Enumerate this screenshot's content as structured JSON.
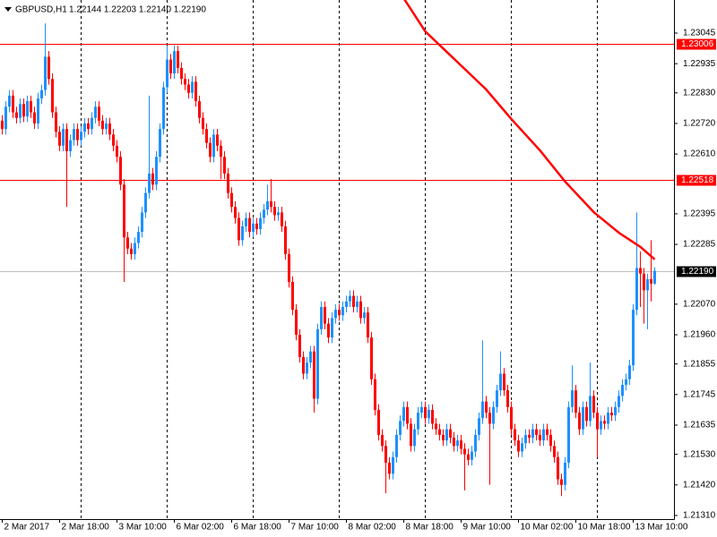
{
  "chart_data": {
    "type": "candlestick",
    "title": "GBPUSD,H1",
    "ohlc_label": "1.22144 1.22203 1.22140 1.22190",
    "categories": [
      "2 Mar 2017",
      null,
      null,
      null,
      null,
      null,
      null,
      null,
      null,
      null,
      null,
      null,
      null,
      null,
      null,
      null,
      "2 Mar 18:00",
      null,
      null,
      null,
      null,
      null,
      null,
      null,
      null,
      null,
      null,
      null,
      null,
      null,
      null,
      null,
      "3 Mar 10:00",
      null,
      null,
      null,
      null,
      null,
      null,
      null,
      null,
      null,
      null,
      null,
      null,
      null,
      null,
      null,
      "6 Mar 02:00",
      null,
      null,
      null,
      null,
      null,
      null,
      null,
      null,
      null,
      null,
      null,
      null,
      null,
      null,
      null,
      "6 Mar 18:00",
      null,
      null,
      null,
      null,
      null,
      null,
      null,
      null,
      null,
      null,
      null,
      null,
      null,
      null,
      null,
      "7 Mar 10:00",
      null,
      null,
      null,
      null,
      null,
      null,
      null,
      null,
      null,
      null,
      null,
      null,
      null,
      null,
      null,
      "8 Mar 02:00",
      null,
      null,
      null,
      null,
      null,
      null,
      null,
      null,
      null,
      null,
      null,
      null,
      null,
      null,
      null,
      "8 Mar 18:00",
      null,
      null,
      null,
      null,
      null,
      null,
      null,
      null,
      null,
      null,
      null,
      null,
      null,
      null,
      null,
      "9 Mar 10:00",
      null,
      null,
      null,
      null,
      null,
      null,
      null,
      null,
      null,
      null,
      null,
      null,
      null,
      null,
      null,
      "10 Mar 02:00",
      null,
      null,
      null,
      null,
      null,
      null,
      null,
      null,
      null,
      null,
      null,
      null,
      null,
      null,
      null,
      "10 Mar 18:00",
      null,
      null,
      null,
      null,
      null,
      null,
      null,
      null,
      null,
      null,
      null,
      null,
      null,
      null,
      null,
      "13 Mar 10:00",
      null,
      null,
      null,
      null,
      null,
      null
    ],
    "open": [
      1.2273,
      1.227,
      1.2278,
      1.2282,
      1.2276,
      1.2274,
      1.2279,
      1.22745,
      1.228,
      1.2276,
      1.2272,
      1.2281,
      1.2284,
      1.2296,
      1.2288,
      1.2276,
      1.2269,
      1.2264,
      1.227,
      1.2262,
      1.2266,
      1.227,
      1.2266,
      1.2269,
      1.2272,
      1.227,
      1.2274,
      1.2278,
      1.2273,
      1.227,
      1.2272,
      1.2268,
      1.2264,
      1.226,
      1.225,
      1.2231,
      1.2227,
      1.2225,
      1.2229,
      1.2233,
      1.224,
      1.2247,
      1.2254,
      1.225,
      1.226,
      1.227,
      1.2285,
      1.2295,
      1.229,
      1.2298,
      1.2292,
      1.2288,
      1.2286,
      1.2283,
      1.2287,
      1.228,
      1.2274,
      1.227,
      1.2265,
      1.226,
      1.2268,
      1.2264,
      1.226,
      1.2254,
      1.2247,
      1.2242,
      1.2238,
      1.223,
      1.2235,
      1.2238,
      1.2233,
      1.2236,
      1.2234,
      1.2238,
      1.2241,
      1.2244,
      1.2242,
      1.2239,
      1.224,
      1.2235,
      1.2225,
      1.2215,
      1.2205,
      1.2196,
      1.2188,
      1.2182,
      1.2186,
      1.219,
      1.2173,
      1.2198,
      1.2206,
      1.22,
      1.2195,
      1.2202,
      1.2205,
      1.2203,
      1.2206,
      1.2208,
      1.221,
      1.2206,
      1.2208,
      1.2202,
      1.2204,
      1.2195,
      1.218,
      1.2169,
      1.216,
      1.2156,
      1.215,
      1.2146,
      1.2152,
      1.216,
      1.2165,
      1.217,
      1.2164,
      1.2156,
      1.2162,
      1.2168,
      1.217,
      1.2166,
      1.2169,
      1.2164,
      1.2162,
      1.216,
      1.2158,
      1.2162,
      1.2159,
      1.2156,
      1.2158,
      1.2155,
      1.2153,
      1.2151,
      1.2154,
      1.216,
      1.2166,
      1.2172,
      1.2168,
      1.2164,
      1.217,
      1.2176,
      1.2182,
      1.2176,
      1.217,
      1.2162,
      1.2158,
      1.2154,
      1.2157,
      1.216,
      1.2159,
      1.2162,
      1.216,
      1.2158,
      1.2162,
      1.216,
      1.2156,
      1.2152,
      1.2144,
      1.2142,
      1.215,
      1.217,
      1.2176,
      1.2168,
      1.2162,
      1.217,
      1.2165,
      1.2174,
      1.2168,
      1.2162,
      1.2165,
      1.2164,
      1.2168,
      1.2167,
      1.217,
      1.2174,
      1.2178,
      1.218,
      1.2185,
      1.2205,
      1.222,
      1.2218,
      1.2212,
      1.2216,
      1.22144
    ],
    "high": [
      1.2275,
      1.228,
      1.2284,
      1.2284,
      1.2278,
      1.2281,
      1.2281,
      1.2282,
      1.2282,
      1.2278,
      1.2283,
      1.2286,
      1.2308,
      1.2298,
      1.229,
      1.2278,
      1.2271,
      1.2272,
      1.2272,
      1.2268,
      1.2272,
      1.2272,
      1.2271,
      1.2274,
      1.2274,
      1.2276,
      1.228,
      1.228,
      1.2275,
      1.2274,
      1.2274,
      1.227,
      1.2266,
      1.2262,
      1.2252,
      1.2233,
      1.2229,
      1.2231,
      1.2235,
      1.2242,
      1.2249,
      1.2282,
      1.2256,
      1.2262,
      1.2272,
      1.2287,
      1.23,
      1.2297,
      1.23,
      1.23,
      1.2294,
      1.229,
      1.2288,
      1.2289,
      1.2289,
      1.2282,
      1.2276,
      1.2272,
      1.2267,
      1.227,
      1.227,
      1.2266,
      1.2262,
      1.2256,
      1.2249,
      1.2244,
      1.224,
      1.2237,
      1.224,
      1.224,
      1.2238,
      1.2238,
      1.224,
      1.2243,
      1.225,
      1.2252,
      1.2244,
      1.2242,
      1.2242,
      1.2237,
      1.2227,
      1.2217,
      1.2207,
      1.2198,
      1.219,
      1.2188,
      1.2192,
      1.2192,
      1.22,
      1.2208,
      1.2208,
      1.2202,
      1.2204,
      1.2207,
      1.2207,
      1.2208,
      1.221,
      1.2212,
      1.2212,
      1.221,
      1.221,
      1.2206,
      1.2206,
      1.2197,
      1.2182,
      1.2171,
      1.2162,
      1.2158,
      1.2152,
      1.2154,
      1.2162,
      1.2167,
      1.2172,
      1.2172,
      1.2166,
      1.2164,
      1.217,
      1.2172,
      1.2172,
      1.2171,
      1.2171,
      1.2166,
      1.2164,
      1.2162,
      1.2164,
      1.2164,
      1.2161,
      1.216,
      1.216,
      1.2157,
      1.2155,
      1.2156,
      1.2162,
      1.2168,
      1.2194,
      1.2174,
      1.217,
      1.2172,
      1.2178,
      1.219,
      1.2184,
      1.2178,
      1.2172,
      1.2164,
      1.216,
      1.2159,
      1.2162,
      1.2162,
      1.2164,
      1.2164,
      1.2162,
      1.2164,
      1.2164,
      1.2162,
      1.2158,
      1.2154,
      1.2146,
      1.2152,
      1.2172,
      1.2185,
      1.2178,
      1.217,
      1.2172,
      1.2172,
      1.2186,
      1.2176,
      1.217,
      1.2167,
      1.2167,
      1.217,
      1.217,
      1.2172,
      1.2176,
      1.218,
      1.2182,
      1.2187,
      1.2207,
      1.224,
      1.2226,
      1.222,
      1.2218,
      1.223,
      1.22203
    ],
    "low": [
      1.2268,
      1.2268,
      1.2276,
      1.2274,
      1.2272,
      1.2272,
      1.22725,
      1.22725,
      1.2274,
      1.227,
      1.227,
      1.2279,
      1.2282,
      1.2286,
      1.2274,
      1.2267,
      1.2262,
      1.2262,
      1.2242,
      1.226,
      1.2264,
      1.2264,
      1.2264,
      1.2267,
      1.2268,
      1.2268,
      1.2272,
      1.2271,
      1.2268,
      1.2268,
      1.2266,
      1.2262,
      1.2258,
      1.2248,
      1.2215,
      1.2225,
      1.2223,
      1.2223,
      1.2227,
      1.2231,
      1.2238,
      1.2245,
      1.2248,
      1.2248,
      1.2258,
      1.2268,
      1.2283,
      1.2288,
      1.2288,
      1.229,
      1.2286,
      1.2284,
      1.2281,
      1.2281,
      1.2278,
      1.2272,
      1.2268,
      1.2263,
      1.2258,
      1.2258,
      1.2262,
      1.2252,
      1.2252,
      1.2245,
      1.224,
      1.2236,
      1.2228,
      1.2228,
      1.2233,
      1.2231,
      1.2231,
      1.2232,
      1.2232,
      1.2236,
      1.2239,
      1.224,
      1.2237,
      1.2237,
      1.2233,
      1.2223,
      1.2213,
      1.2203,
      1.2194,
      1.2186,
      1.218,
      1.218,
      1.2184,
      1.2168,
      1.2171,
      1.2196,
      1.2198,
      1.2193,
      1.2193,
      1.22,
      1.2201,
      1.2201,
      1.2204,
      1.2206,
      1.2204,
      1.2204,
      1.22,
      1.22,
      1.2193,
      1.2178,
      1.2167,
      1.2158,
      1.2154,
      1.2139,
      1.2144,
      1.2144,
      1.215,
      1.2158,
      1.2163,
      1.2162,
      1.2154,
      1.2154,
      1.216,
      1.2166,
      1.2164,
      1.2164,
      1.2162,
      1.216,
      1.2158,
      1.2156,
      1.2156,
      1.2157,
      1.2154,
      1.2154,
      1.2153,
      1.214,
      1.2149,
      1.2149,
      1.2152,
      1.2158,
      1.2164,
      1.2166,
      1.2142,
      1.2162,
      1.2168,
      1.2174,
      1.2174,
      1.2168,
      1.216,
      1.2156,
      1.2152,
      1.2152,
      1.2155,
      1.2157,
      1.2157,
      1.2158,
      1.2156,
      1.2156,
      1.2158,
      1.2154,
      1.215,
      1.2142,
      1.2138,
      1.214,
      1.2148,
      1.2168,
      1.2166,
      1.216,
      1.216,
      1.2163,
      1.2163,
      1.2166,
      1.2152,
      1.216,
      1.2162,
      1.2162,
      1.2165,
      1.2165,
      1.2168,
      1.2172,
      1.2176,
      1.2178,
      1.2183,
      1.2203,
      1.2206,
      1.22,
      1.2198,
      1.2208,
      1.2214
    ],
    "close": [
      1.227,
      1.2278,
      1.2282,
      1.2276,
      1.2274,
      1.2279,
      1.22745,
      1.228,
      1.2276,
      1.2272,
      1.2281,
      1.2284,
      1.2296,
      1.2288,
      1.2276,
      1.2269,
      1.2264,
      1.227,
      1.2262,
      1.2266,
      1.227,
      1.2266,
      1.2269,
      1.2272,
      1.227,
      1.2274,
      1.2278,
      1.2273,
      1.227,
      1.2272,
      1.2268,
      1.2264,
      1.226,
      1.225,
      1.2231,
      1.2227,
      1.2225,
      1.2229,
      1.2233,
      1.224,
      1.2247,
      1.2254,
      1.225,
      1.226,
      1.227,
      1.2285,
      1.2295,
      1.229,
      1.2298,
      1.2292,
      1.2288,
      1.2286,
      1.2283,
      1.2287,
      1.228,
      1.2274,
      1.227,
      1.2265,
      1.226,
      1.2268,
      1.2264,
      1.226,
      1.2254,
      1.2247,
      1.2242,
      1.2238,
      1.223,
      1.2235,
      1.2238,
      1.2233,
      1.2236,
      1.2234,
      1.2238,
      1.2241,
      1.2244,
      1.2242,
      1.2239,
      1.224,
      1.2235,
      1.2225,
      1.2215,
      1.2205,
      1.2196,
      1.2188,
      1.2182,
      1.2186,
      1.219,
      1.2173,
      1.2198,
      1.2206,
      1.22,
      1.2195,
      1.2202,
      1.2205,
      1.2203,
      1.2206,
      1.2208,
      1.221,
      1.2206,
      1.2208,
      1.2202,
      1.2204,
      1.2195,
      1.218,
      1.2169,
      1.216,
      1.2156,
      1.215,
      1.2146,
      1.2152,
      1.216,
      1.2165,
      1.217,
      1.2164,
      1.2156,
      1.2162,
      1.2168,
      1.217,
      1.2166,
      1.2169,
      1.2164,
      1.2162,
      1.216,
      1.2158,
      1.2162,
      1.2159,
      1.2156,
      1.2158,
      1.2155,
      1.2153,
      1.2151,
      1.2154,
      1.216,
      1.2166,
      1.2172,
      1.2168,
      1.2164,
      1.217,
      1.2176,
      1.2182,
      1.2176,
      1.217,
      1.2162,
      1.2158,
      1.2154,
      1.2157,
      1.216,
      1.2159,
      1.2162,
      1.216,
      1.2158,
      1.2162,
      1.216,
      1.2156,
      1.2152,
      1.2144,
      1.2142,
      1.215,
      1.217,
      1.2176,
      1.2168,
      1.2162,
      1.217,
      1.2165,
      1.2174,
      1.2168,
      1.2162,
      1.2165,
      1.2164,
      1.2168,
      1.2167,
      1.217,
      1.2174,
      1.2178,
      1.218,
      1.2185,
      1.2205,
      1.222,
      1.2218,
      1.2212,
      1.2216,
      1.22144,
      1.2219
    ],
    "up_color": "#1e90ff",
    "down_color": "#ff0000",
    "ma": {
      "color": "#ff0000",
      "x": [
        112,
        118,
        125,
        135,
        142,
        150,
        157,
        165,
        172,
        178,
        182
      ],
      "values": [
        1.2317,
        1.23051,
        1.22965,
        1.22842,
        1.22736,
        1.22623,
        1.22511,
        1.22401,
        1.22327,
        1.22276,
        1.22231
      ]
    },
    "levels": [
      1.23006,
      1.22518
    ],
    "level_color": "#ff0000",
    "current_price": {
      "value": 1.2219,
      "label": "1.22190"
    },
    "ylim": [
      1.21297,
      1.23164
    ],
    "yticks": [
      1.23045,
      1.22935,
      {
        "value": 1.2283,
        "label": "1.22830"
      },
      {
        "value": 1.2272,
        "label": "1.22720"
      },
      {
        "value": 1.2261,
        "label": "1.22610"
      },
      1.22395,
      1.22285,
      {
        "value": 1.2207,
        "label": "1.22070"
      },
      {
        "value": 1.2196,
        "label": "1.21960"
      },
      1.21855,
      1.21745,
      1.21635,
      {
        "value": 1.2153,
        "label": "1.21530"
      },
      {
        "value": 1.2142,
        "label": "1.21420"
      },
      {
        "value": 1.2131,
        "label": "1.21310"
      }
    ]
  }
}
